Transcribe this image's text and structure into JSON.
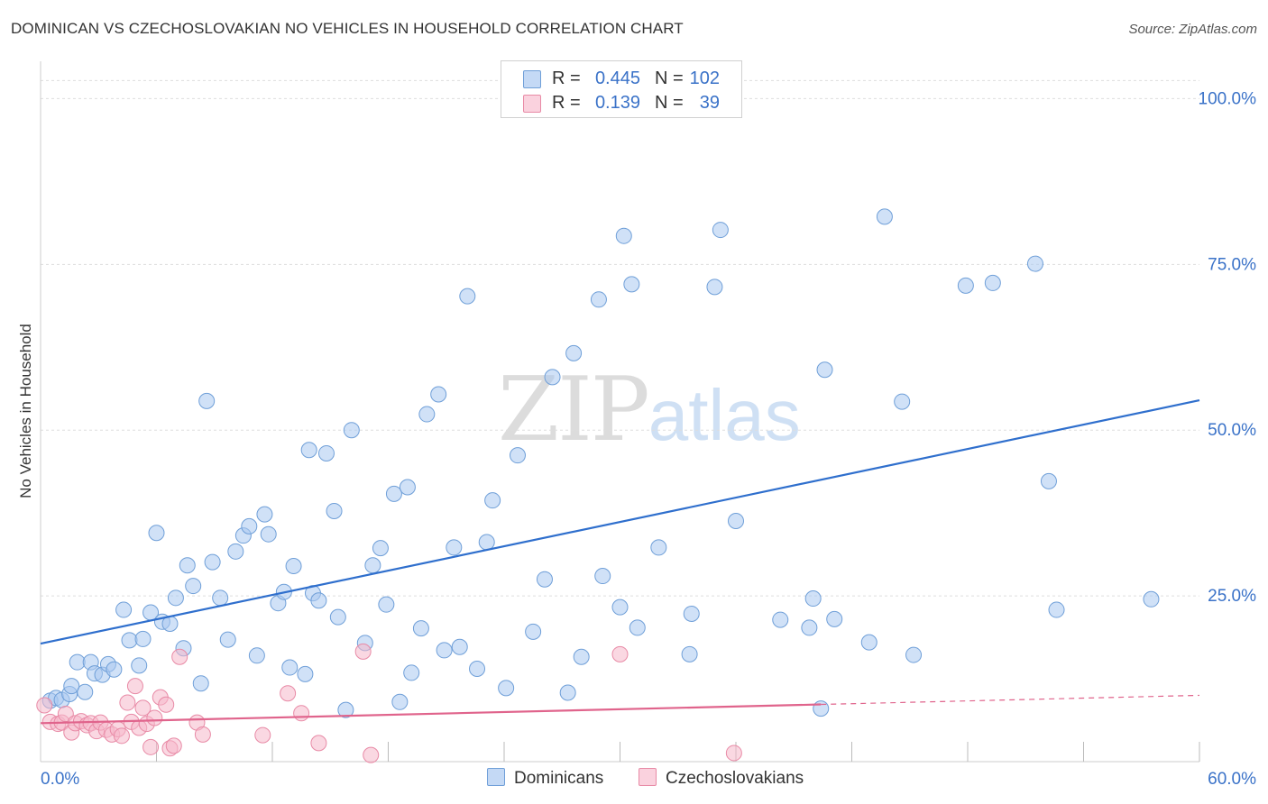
{
  "header": {
    "title": "DOMINICAN VS CZECHOSLOVAKIAN NO VEHICLES IN HOUSEHOLD CORRELATION CHART",
    "source": "Source: ZipAtlas.com"
  },
  "watermark": {
    "zip": "ZIP",
    "atlas": "atlas"
  },
  "legend": {
    "r_label": "R =",
    "n_label": "N =",
    "rows": [
      {
        "r": "0.445",
        "n": "102",
        "color": "#a9c8f0"
      },
      {
        "r": "0.139",
        "n": "39",
        "color": "#f5b8ca"
      }
    ]
  },
  "colors": {
    "blue_fill": "#a9c8f0",
    "blue_stroke": "#6f9fd8",
    "blue_line": "#2f6fcd",
    "pink_fill": "#f5b8ca",
    "pink_stroke": "#e88aa6",
    "pink_line": "#e0648c",
    "axis_label": "#3a72c8",
    "grid": "#dddddd"
  },
  "chart_data": {
    "type": "scatter",
    "title": "DOMINICAN VS CZECHOSLOVAKIAN NO VEHICLES IN HOUSEHOLD CORRELATION CHART",
    "xlabel": "",
    "ylabel": "No Vehicles in Household",
    "xlim": [
      0,
      60
    ],
    "ylim": [
      0,
      104
    ],
    "x_tick_labels": [
      "0.0%",
      "60.0%"
    ],
    "y_ticks": [
      25,
      50,
      75,
      100
    ],
    "y_tick_labels": [
      "25.0%",
      "50.0%",
      "75.0%",
      "100.0%"
    ],
    "grid": true,
    "legend_position": "top-center",
    "series": [
      {
        "name": "Dominicans",
        "r": 0.445,
        "n": 102,
        "trend": {
          "x": [
            0,
            60
          ],
          "y": [
            17.8,
            54.5
          ],
          "solid_to": 60
        },
        "points": [
          [
            0.5,
            9.2
          ],
          [
            0.8,
            9.6
          ],
          [
            1.1,
            9.3
          ],
          [
            1.5,
            10.2
          ],
          [
            1.6,
            11.4
          ],
          [
            1.9,
            15.0
          ],
          [
            2.3,
            10.5
          ],
          [
            2.6,
            15.0
          ],
          [
            2.8,
            13.3
          ],
          [
            3.2,
            13.1
          ],
          [
            3.5,
            14.7
          ],
          [
            3.8,
            13.9
          ],
          [
            4.3,
            22.9
          ],
          [
            4.6,
            18.3
          ],
          [
            5.1,
            14.5
          ],
          [
            5.3,
            18.5
          ],
          [
            5.7,
            22.5
          ],
          [
            6.0,
            34.5
          ],
          [
            6.3,
            21.1
          ],
          [
            6.7,
            20.8
          ],
          [
            7.0,
            24.7
          ],
          [
            7.4,
            17.1
          ],
          [
            7.6,
            29.6
          ],
          [
            7.9,
            26.5
          ],
          [
            8.3,
            11.8
          ],
          [
            8.6,
            54.4
          ],
          [
            8.9,
            30.1
          ],
          [
            9.3,
            24.7
          ],
          [
            9.7,
            18.4
          ],
          [
            10.1,
            31.7
          ],
          [
            10.5,
            34.1
          ],
          [
            10.8,
            35.5
          ],
          [
            11.2,
            16.0
          ],
          [
            11.6,
            37.3
          ],
          [
            11.8,
            34.3
          ],
          [
            12.3,
            23.9
          ],
          [
            12.6,
            25.6
          ],
          [
            12.9,
            14.2
          ],
          [
            13.1,
            29.5
          ],
          [
            13.7,
            13.2
          ],
          [
            13.9,
            47.0
          ],
          [
            14.1,
            25.4
          ],
          [
            14.4,
            24.3
          ],
          [
            14.8,
            46.5
          ],
          [
            15.2,
            37.8
          ],
          [
            15.4,
            21.8
          ],
          [
            15.8,
            7.8
          ],
          [
            16.1,
            50.0
          ],
          [
            16.8,
            17.9
          ],
          [
            17.2,
            29.6
          ],
          [
            17.6,
            32.2
          ],
          [
            17.9,
            23.7
          ],
          [
            18.3,
            40.4
          ],
          [
            18.6,
            9.0
          ],
          [
            19.0,
            41.4
          ],
          [
            19.2,
            13.4
          ],
          [
            19.7,
            20.1
          ],
          [
            20.0,
            52.4
          ],
          [
            20.6,
            55.4
          ],
          [
            20.9,
            16.8
          ],
          [
            21.4,
            32.3
          ],
          [
            21.7,
            17.3
          ],
          [
            22.1,
            70.2
          ],
          [
            22.6,
            14.0
          ],
          [
            23.1,
            33.1
          ],
          [
            23.4,
            39.4
          ],
          [
            24.1,
            11.1
          ],
          [
            24.7,
            46.2
          ],
          [
            25.5,
            19.6
          ],
          [
            26.1,
            27.5
          ],
          [
            26.5,
            58.0
          ],
          [
            27.3,
            10.4
          ],
          [
            27.6,
            61.6
          ],
          [
            28.0,
            15.8
          ],
          [
            28.9,
            69.7
          ],
          [
            29.1,
            28.0
          ],
          [
            30.0,
            23.3
          ],
          [
            30.2,
            79.3
          ],
          [
            30.6,
            72.0
          ],
          [
            30.9,
            20.2
          ],
          [
            32.0,
            32.3
          ],
          [
            33.6,
            16.2
          ],
          [
            33.7,
            22.3
          ],
          [
            34.9,
            71.6
          ],
          [
            35.2,
            80.2
          ],
          [
            36.0,
            36.3
          ],
          [
            38.3,
            21.4
          ],
          [
            39.8,
            20.2
          ],
          [
            40.0,
            24.6
          ],
          [
            40.4,
            8.0
          ],
          [
            40.6,
            59.1
          ],
          [
            41.1,
            21.5
          ],
          [
            42.9,
            18.0
          ],
          [
            43.7,
            82.2
          ],
          [
            44.6,
            54.3
          ],
          [
            45.2,
            16.1
          ],
          [
            47.9,
            71.8
          ],
          [
            49.3,
            72.2
          ],
          [
            51.5,
            75.1
          ],
          [
            52.2,
            42.3
          ],
          [
            52.6,
            22.9
          ],
          [
            57.5,
            24.5
          ]
        ]
      },
      {
        "name": "Czechoslovakians",
        "r": 0.139,
        "n": 39,
        "trend": {
          "x": [
            0,
            60
          ],
          "y": [
            5.8,
            10.0
          ],
          "solid_to": 40.4
        },
        "points": [
          [
            0.2,
            8.5
          ],
          [
            0.5,
            6.0
          ],
          [
            0.9,
            5.7
          ],
          [
            1.1,
            5.9
          ],
          [
            1.3,
            7.2
          ],
          [
            1.6,
            4.4
          ],
          [
            1.8,
            5.8
          ],
          [
            2.1,
            6.1
          ],
          [
            2.4,
            5.5
          ],
          [
            2.6,
            5.8
          ],
          [
            2.9,
            4.6
          ],
          [
            3.1,
            5.9
          ],
          [
            3.4,
            4.8
          ],
          [
            3.7,
            4.1
          ],
          [
            4.0,
            4.9
          ],
          [
            4.2,
            3.9
          ],
          [
            4.5,
            8.9
          ],
          [
            4.7,
            6.0
          ],
          [
            4.9,
            11.4
          ],
          [
            5.1,
            5.1
          ],
          [
            5.3,
            8.1
          ],
          [
            5.5,
            5.7
          ],
          [
            5.7,
            2.2
          ],
          [
            5.9,
            6.6
          ],
          [
            6.2,
            9.7
          ],
          [
            6.5,
            8.6
          ],
          [
            6.7,
            2.0
          ],
          [
            6.9,
            2.4
          ],
          [
            7.2,
            15.8
          ],
          [
            8.1,
            5.9
          ],
          [
            8.4,
            4.1
          ],
          [
            11.5,
            4.0
          ],
          [
            12.8,
            10.3
          ],
          [
            13.5,
            7.3
          ],
          [
            14.4,
            2.8
          ],
          [
            16.7,
            16.6
          ],
          [
            17.1,
            1.0
          ],
          [
            30.0,
            16.2
          ],
          [
            35.9,
            1.3
          ]
        ]
      }
    ]
  },
  "bottom_legend": [
    {
      "label": "Dominicans",
      "color": "#a9c8f0"
    },
    {
      "label": "Czechoslovakians",
      "color": "#f5b8ca"
    }
  ]
}
